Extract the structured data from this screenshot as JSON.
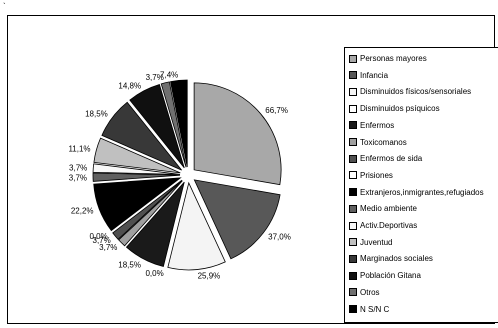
{
  "corner_mark": "`",
  "chart_data": {
    "type": "pie",
    "title": "",
    "legend_position": "right",
    "slices": [
      {
        "name": "Personas mayores",
        "value": 66.7,
        "label": "66,7%",
        "color": "#a8a8a8"
      },
      {
        "name": "Infancia",
        "value": 37.0,
        "label": "37,0%",
        "color": "#585858"
      },
      {
        "name": "Disminuidos físicos/sensoriales",
        "value": 25.9,
        "label": "25,9%",
        "color": "#f4f4f4"
      },
      {
        "name": "Disminuidos psíquicos",
        "value": 0.0,
        "label": "0,0%",
        "color": "#ffffff"
      },
      {
        "name": "Enfermos",
        "value": 18.5,
        "label": "18,5%",
        "color": "#1a1a1a"
      },
      {
        "name": "Toxicomanos",
        "value": 3.7,
        "label": "3,7%",
        "color": "#a0a0a0"
      },
      {
        "name": "Enfermos de sida",
        "value": 3.7,
        "label": "3,7%",
        "color": "#505050"
      },
      {
        "name": "Prisiones",
        "value": 0.0,
        "label": "0,0%",
        "color": "#ffffff"
      },
      {
        "name": "Extranjeros,inmigrantes,refugiados",
        "value": 22.2,
        "label": "22,2%",
        "color": "#000000"
      },
      {
        "name": "Medio ambiente",
        "value": 3.7,
        "label": "3,7%",
        "color": "#606060"
      },
      {
        "name": "Activ.Deportivas",
        "value": 3.7,
        "label": "3,7%",
        "color": "#f8f8f8"
      },
      {
        "name": "Juventud",
        "value": 11.1,
        "label": "11,1%",
        "color": "#c0c0c0"
      },
      {
        "name": "Marginados sociales",
        "value": 18.5,
        "label": "18,5%",
        "color": "#383838"
      },
      {
        "name": "Población Gitana",
        "value": 14.8,
        "label": "14,8%",
        "color": "#101010"
      },
      {
        "name": "Otros",
        "value": 3.7,
        "label": "3,7%",
        "color": "#707070"
      },
      {
        "name": "N S/N C",
        "value": 7.4,
        "label": "7,4%",
        "color": "#000000"
      }
    ]
  }
}
